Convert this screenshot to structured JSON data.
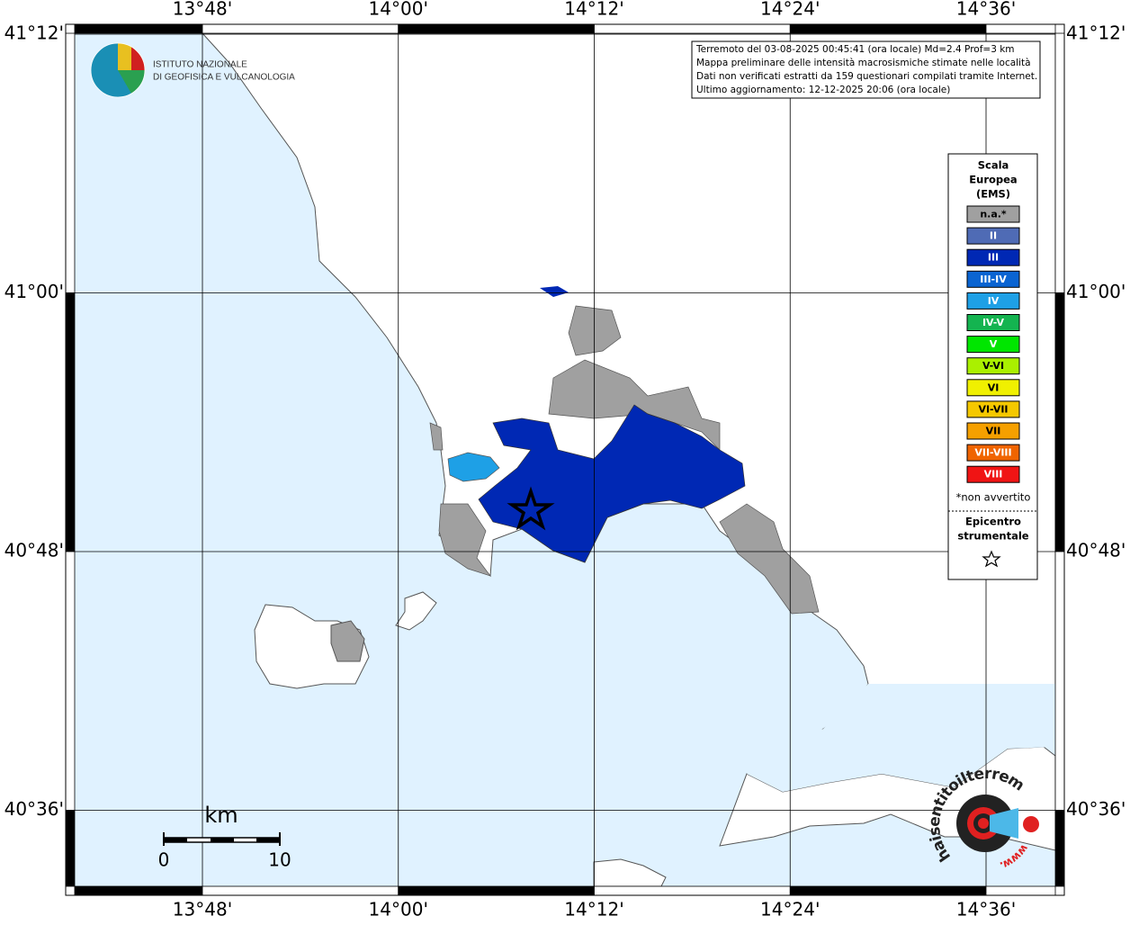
{
  "map": {
    "lon_labels": [
      "13°48'",
      "14°00'",
      "14°12'",
      "14°24'",
      "14°36'"
    ],
    "lat_labels": [
      "41°12'",
      "41°00'",
      "40°48'",
      "40°36'"
    ],
    "info": [
      "Terremoto del 03-08-2025 00:45:41 (ora locale) Md=2.4 Prof=3 km",
      "Mappa preliminare delle intensità macrosismiche stimate nelle località",
      "Dati non verificati estratti da 159 questionari compilati tramite Internet.",
      "Ultimo aggiornamento: 12-12-2025 20:06 (ora locale)"
    ],
    "scale": {
      "unit": "km",
      "labels": [
        "0",
        "10"
      ]
    }
  },
  "logo": {
    "lines": [
      "ISTITUTO NAZIONALE",
      "DI GEOFISICA E VULCANOLOGIA"
    ]
  },
  "legend": {
    "title": [
      "Scala",
      "Europea",
      "(EMS)"
    ],
    "items": [
      {
        "label": "n.a.*",
        "color": "#a0a0a0"
      },
      {
        "label": "II",
        "color": "#4f6bb5"
      },
      {
        "label": "III",
        "color": "#0028b4"
      },
      {
        "label": "III-IV",
        "color": "#0a64d2"
      },
      {
        "label": "IV",
        "color": "#1ea0e6"
      },
      {
        "label": "IV-V",
        "color": "#14b450"
      },
      {
        "label": "V",
        "color": "#00e600"
      },
      {
        "label": "V-VI",
        "color": "#aaf000"
      },
      {
        "label": "VI",
        "color": "#f0f000"
      },
      {
        "label": "VI-VII",
        "color": "#f5c800"
      },
      {
        "label": "VII",
        "color": "#f5a000"
      },
      {
        "label": "VII-VIII",
        "color": "#f06400"
      },
      {
        "label": "VIII",
        "color": "#f01414"
      }
    ],
    "note": "*non avvertito",
    "epicenter": [
      "Epicentro",
      "strumentale"
    ]
  },
  "badge": {
    "site": "haisentitoilterremoto.it",
    "www": "www."
  }
}
